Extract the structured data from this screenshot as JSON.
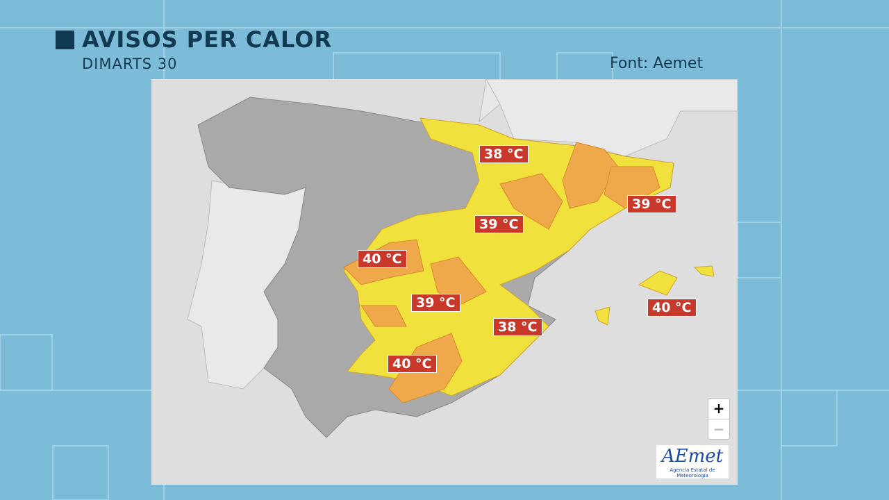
{
  "header": {
    "title": "AVISOS PER CALOR",
    "subtitle": "DIMARTS 30",
    "source": "Font: Aemet"
  },
  "map": {
    "labels": [
      "38 °C",
      "39 °C",
      "39 °C",
      "40 °C",
      "39 °C",
      "40 °C",
      "38 °C",
      "40 °C"
    ]
  },
  "controls": {
    "zoom_in": "+",
    "zoom_out": "−"
  },
  "logo": {
    "name": "AEmet",
    "caption": "Agencia Estatal de Meteorología"
  }
}
